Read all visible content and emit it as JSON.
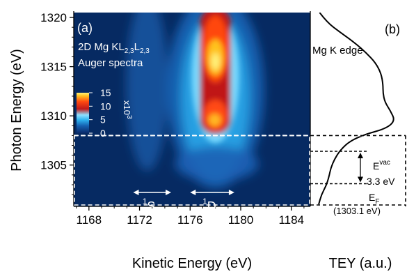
{
  "chart_data": [
    {
      "type": "heatmap",
      "panel_label": "(a)",
      "annotation_lines": [
        "2D Mg KL",
        "2,3",
        "L",
        "2,3",
        "Auger spectra"
      ],
      "xlabel": "Kinetic Energy (eV)",
      "ylabel": "Photon Energy (eV)",
      "xlim": [
        1166.8,
        1185.5
      ],
      "ylim": [
        1300.8,
        1320.5
      ],
      "x_ticks": [
        1168,
        1172,
        1176,
        1180,
        1184
      ],
      "y_ticks": [
        1305,
        1310,
        1315,
        1320
      ],
      "colorbar": {
        "ticks": [
          0,
          5,
          10,
          15
        ],
        "range": [
          0,
          15
        ],
        "multiplier_label": "x10",
        "multiplier_exponent": "3"
      },
      "dashed_line_photon_energy": 1308.0,
      "features": [
        {
          "name": "1D2 channel",
          "kinetic_energy_center": 1178.0,
          "intensity_peak": 15.5
        },
        {
          "name": "1S0 channel",
          "kinetic_energy_center": 1172.6,
          "intensity_peak": 3.5
        }
      ],
      "state_labels": [
        {
          "sup": "1",
          "main": "S",
          "sub": "0",
          "arrow_x_range": [
            1171.5,
            1174.5
          ],
          "photon_energy": 1303.6
        },
        {
          "sup": "1",
          "main": "D",
          "sub": "2",
          "arrow_x_range": [
            1176.0,
            1179.5
          ],
          "photon_energy": 1303.6
        }
      ]
    },
    {
      "type": "line",
      "panel_label": "(b)",
      "xlabel": "TEY (a.u.)",
      "curve_label": "Mg K edge",
      "points": [
        [
          0.1,
          1320.5
        ],
        [
          0.18,
          1319.5
        ],
        [
          0.32,
          1318.5
        ],
        [
          0.48,
          1317.4
        ],
        [
          0.6,
          1316.4
        ],
        [
          0.7,
          1315.4
        ],
        [
          0.76,
          1314.3
        ],
        [
          0.78,
          1313.2
        ],
        [
          0.78,
          1312.3
        ],
        [
          0.8,
          1311.4
        ],
        [
          0.86,
          1310.5
        ],
        [
          0.91,
          1309.5
        ],
        [
          0.81,
          1308.7
        ],
        [
          0.58,
          1308.1
        ],
        [
          0.42,
          1307.4
        ],
        [
          0.32,
          1306.5
        ],
        [
          0.26,
          1305.6
        ],
        [
          0.22,
          1304.7
        ],
        [
          0.2,
          1303.8
        ],
        [
          0.17,
          1302.9
        ],
        [
          0.12,
          1302.0
        ],
        [
          0.09,
          1301.0
        ]
      ],
      "vacuum_level": {
        "label_main": "E",
        "label_sup": "vac",
        "photon_energy": 1306.4
      },
      "fermi_level": {
        "label_main": "E",
        "label_sub": "F",
        "photon_energy": 1303.1,
        "value_text": "(1303.1 eV)"
      },
      "gap_text": "3.3 eV"
    }
  ]
}
